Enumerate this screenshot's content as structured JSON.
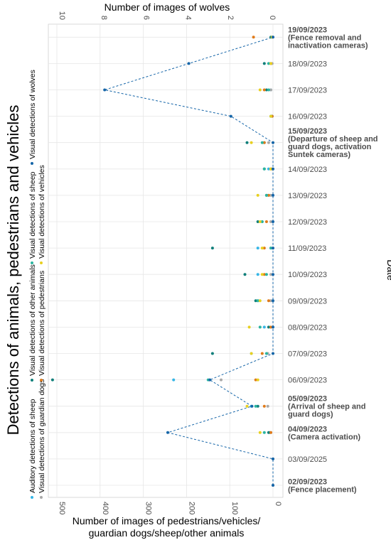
{
  "chart_data": {
    "type": "scatter",
    "orientation": "rotated-90-counterclockwise",
    "title": "Detections of animals, pedestrians and vehicles",
    "xlabel": "Date",
    "ylabel_primary": "Number of images of pedestrians/vehicles/ guardian dogs/sheep/other animals",
    "ylabel_secondary": "Number of images of wolves",
    "ylim_primary": [
      0,
      520
    ],
    "ylim_secondary": [
      0,
      10.4
    ],
    "primary_ticks": [
      "0",
      "100",
      "200",
      "300",
      "400",
      "500"
    ],
    "secondary_ticks": [
      "0",
      "2",
      "4",
      "6",
      "8",
      "10"
    ],
    "primary_tick_values": [
      0,
      100,
      200,
      300,
      400,
      500
    ],
    "secondary_tick_values": [
      0,
      2,
      4,
      6,
      8,
      10
    ],
    "grid": true,
    "legend_position": "left",
    "categories": [
      {
        "label": "02/09/2023",
        "sub": [
          "(Fence placement)"
        ],
        "bold": true
      },
      {
        "label": "03/09/2025",
        "sub": [],
        "bold": false
      },
      {
        "label": "04/09/2023",
        "sub": [
          "(Camera activation)"
        ],
        "bold": true
      },
      {
        "label": "05/09/2023",
        "sub": [
          "(Arrival of sheep and",
          "guard dogs)"
        ],
        "bold": true
      },
      {
        "label": "06/09/2023",
        "sub": [],
        "bold": false
      },
      {
        "label": "07/09/2023",
        "sub": [],
        "bold": false
      },
      {
        "label": "08/09/2023",
        "sub": [],
        "bold": false
      },
      {
        "label": "09/09/2023",
        "sub": [],
        "bold": false
      },
      {
        "label": "10/09/2023",
        "sub": [],
        "bold": false
      },
      {
        "label": "11/09/2023",
        "sub": [],
        "bold": false
      },
      {
        "label": "12/09/2023",
        "sub": [],
        "bold": false
      },
      {
        "label": "13/09/2023",
        "sub": [],
        "bold": false
      },
      {
        "label": "14/09/2023",
        "sub": [],
        "bold": false
      },
      {
        "label": "15/09/2023",
        "sub": [
          "(Departure of sheep and",
          "guard dogs, activation",
          "Suntek cameras)"
        ],
        "bold": true
      },
      {
        "label": "16/09/2023",
        "sub": [],
        "bold": false
      },
      {
        "label": "17/09/2023",
        "sub": [],
        "bold": false
      },
      {
        "label": "18/09/2023",
        "sub": [],
        "bold": false
      },
      {
        "label": "19/09/2023",
        "sub": [
          "(Fence removal and",
          "inactivation cameras)"
        ],
        "bold": true
      }
    ],
    "series": [
      {
        "name": "Auditory detections of sheep",
        "axis": "primary",
        "color": "#36b6e6",
        "values": [
          null,
          null,
          8,
          50,
          230,
          50,
          20,
          35,
          35,
          35,
          25,
          10,
          10,
          20,
          5,
          5,
          5,
          null
        ]
      },
      {
        "name": "Visual detections of guardian dogs",
        "axis": "primary",
        "color": "#a9a9a9",
        "values": [
          0,
          0,
          5,
          12,
          120,
          12,
          5,
          5,
          5,
          5,
          5,
          5,
          2,
          10,
          2,
          5,
          2,
          0
        ]
      },
      {
        "name": "Visual detections of other animals",
        "axis": "primary",
        "color": "#0f7f7a",
        "values": [
          null,
          null,
          10,
          35,
          510,
          140,
          10,
          40,
          65,
          140,
          35,
          15,
          20,
          60,
          2,
          15,
          20,
          5
        ]
      },
      {
        "name": "Visual detections of pedestrians",
        "axis": "primary",
        "color": "#e07b1a",
        "values": [
          null,
          null,
          5,
          20,
          40,
          25,
          5,
          10,
          20,
          20,
          15,
          10,
          5,
          20,
          2,
          20,
          5,
          45
        ]
      },
      {
        "name": "Visual detections of sheep",
        "axis": "primary",
        "color": "#2bb5a0",
        "values": [
          null,
          null,
          20,
          40,
          150,
          15,
          30,
          35,
          15,
          5,
          25,
          15,
          20,
          25,
          5,
          10,
          10,
          2
        ]
      },
      {
        "name": "Visual detections of vehicles",
        "axis": "primary",
        "color": "#e8d020",
        "values": [
          null,
          null,
          30,
          60,
          35,
          50,
          55,
          30,
          25,
          25,
          30,
          35,
          5,
          50,
          5,
          30,
          5,
          2
        ]
      },
      {
        "name": "Visual detections of wolves",
        "axis": "secondary",
        "color": "#1565a8",
        "values": [
          0,
          0,
          5,
          1,
          3,
          0,
          0,
          0,
          0,
          0,
          0,
          0,
          0,
          0,
          2,
          8,
          4,
          0
        ],
        "line": true
      }
    ]
  }
}
